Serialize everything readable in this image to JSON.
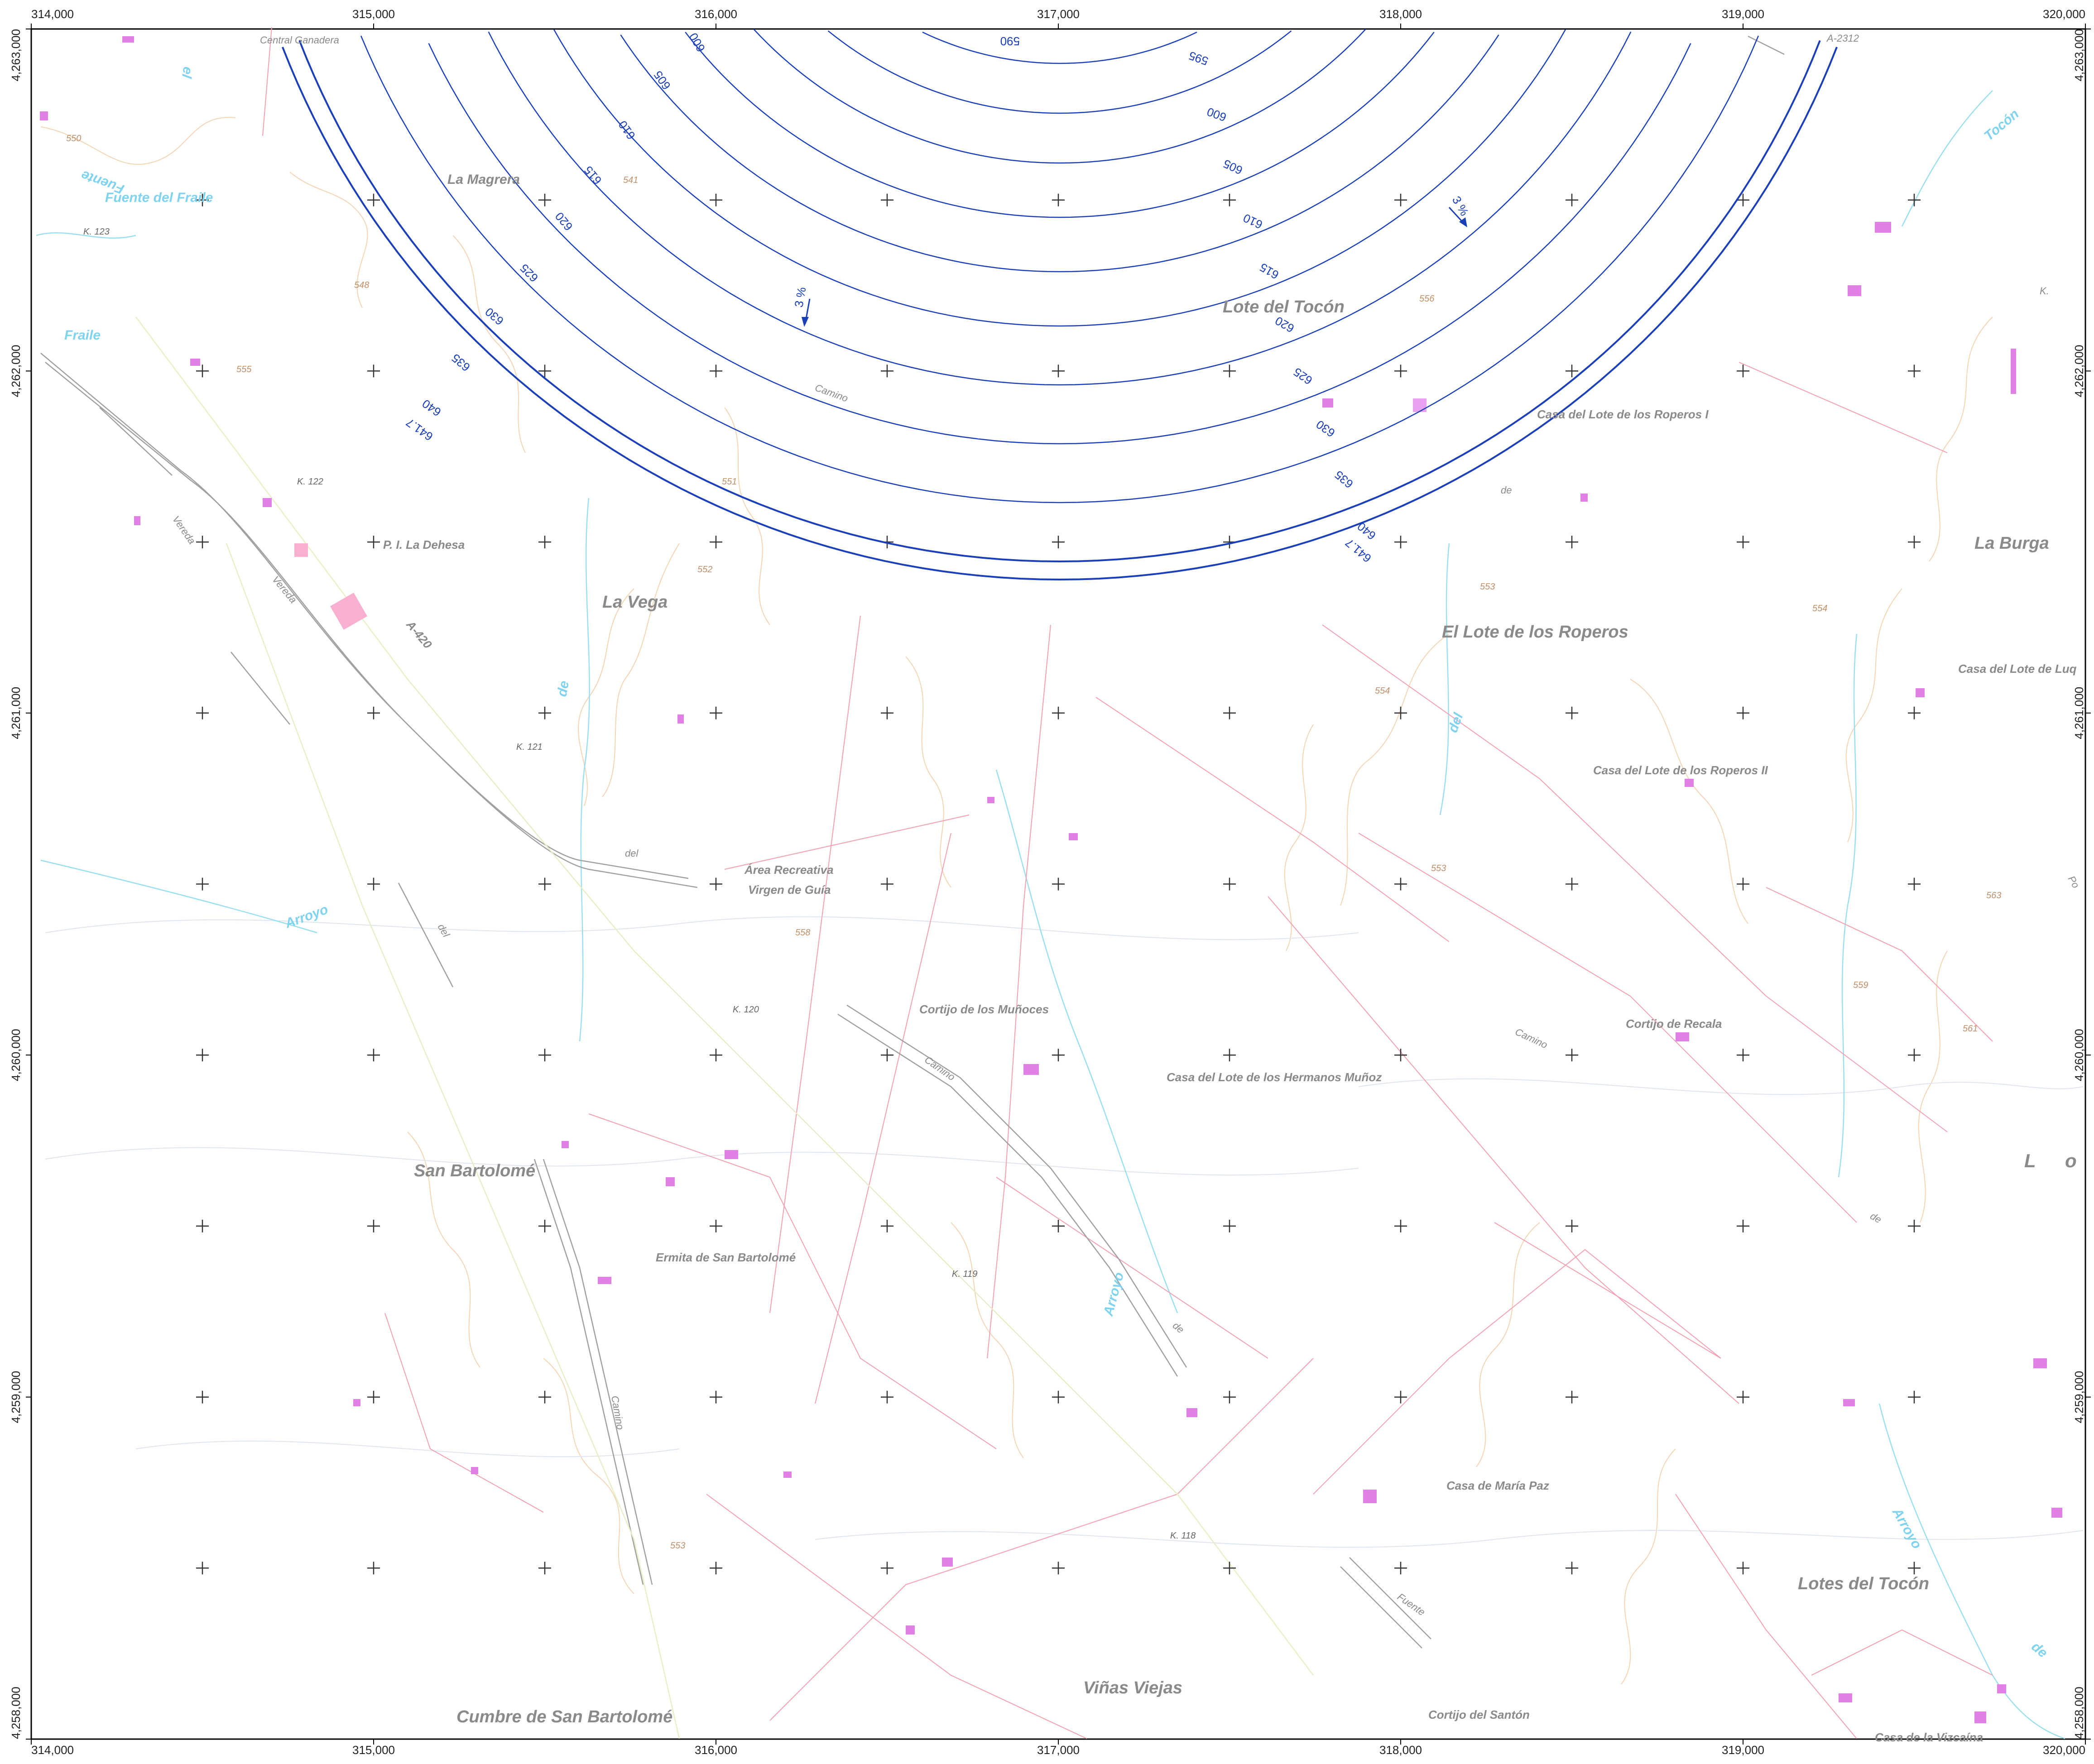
{
  "map": {
    "easting_labels": [
      "314,000",
      "315,000",
      "316,000",
      "317,000",
      "318,000",
      "319,000",
      "320,000"
    ],
    "northing_labels": [
      "4,263,000",
      "4,262,000",
      "4,261,000",
      "4,260,000",
      "4,259,000",
      "4,258,000"
    ],
    "colors": {
      "contour": "#1a3fb8",
      "water": "#7fd3ee",
      "boundary": "#f4a0b0",
      "building": "#e27fe6",
      "road": "#a0a0a0",
      "terrain_contour": "#f2c9a0",
      "label": "#8a8a8a"
    },
    "contour_labels": [
      "590",
      "595",
      "600",
      "605",
      "610",
      "615",
      "620",
      "625",
      "630",
      "635",
      "640",
      "641.7"
    ],
    "slope_label": "3 %",
    "place_names": {
      "central_ganadera": "Central Ganadera",
      "la_magrera": "La Magrera",
      "fuente_del_fraile": "Fuente del Fraile",
      "fuente": "Fuente",
      "fraile": "Fraile",
      "el": "el",
      "k123": "K. 123",
      "k122": "K. 122",
      "k121": "K. 121",
      "k120": "K. 120",
      "k119": "K. 119",
      "k118": "K. 118",
      "pi_la_dehesa": "P. I. La Dehesa",
      "la_vega": "La Vega",
      "a420": "A-420",
      "vereda1": "Vereda",
      "vereda2": "Vereda",
      "lote_del_tocon": "Lote del Tocón",
      "camino1": "Camino",
      "camino2": "Camino",
      "camino3": "Camino",
      "camino4": "Camino",
      "casa_lote_roperos_1": "Casa del  Lote de los Roperos I",
      "casa_lote_roperos_2": "Casa del  Lote de los Roperos II",
      "la_burga": "La Burga",
      "casa_lote_luq": "Casa del Lote de Luq",
      "el_lote_roperos": "El Lote de los Roperos",
      "a2312": "A-2312",
      "tocon": "Tocón",
      "area_recreativa": "Área Recreativa",
      "virgen_guia": "Virgen de Guía",
      "del1": "del",
      "del2": "del",
      "del3": "del",
      "de1": "de",
      "de2": "de",
      "de3": "de",
      "de4": "de",
      "de5": "de",
      "arroyo1": "Arroyo",
      "arroyo2": "Arroyo",
      "arroyo3": "Arroyo",
      "cortijo_munoces": "Cortijo de los Muñoces",
      "cortijo_recala": "Cortijo de Recala",
      "casa_hermanos_munoz": "Casa del  Lote de los Hermanos Muñoz",
      "san_bartolome": "San Bartolomé",
      "ermita_san_bartolome": "Ermita de San Bartolomé",
      "casa_maria_paz": "Casa de María Paz",
      "lotes_del_tocon": "Lotes del Tocón",
      "fuente2": "Fuente",
      "vinas_viejas": "Viñas Viejas",
      "cumbre_san_bartolome": "Cumbre de San Bartolomé",
      "cortijo_santon": "Cortijo del  Santón",
      "casa_vizcaina": "Casa de la Vizcaína",
      "big_l": "L",
      "big_o": "o",
      "k_small": "K.",
      "po": "Po"
    },
    "spot_heights": [
      "550",
      "541",
      "548",
      "555",
      "556",
      "551",
      "552",
      "553",
      "554",
      "553",
      "554",
      "558",
      "553",
      "563",
      "559",
      "561"
    ]
  }
}
